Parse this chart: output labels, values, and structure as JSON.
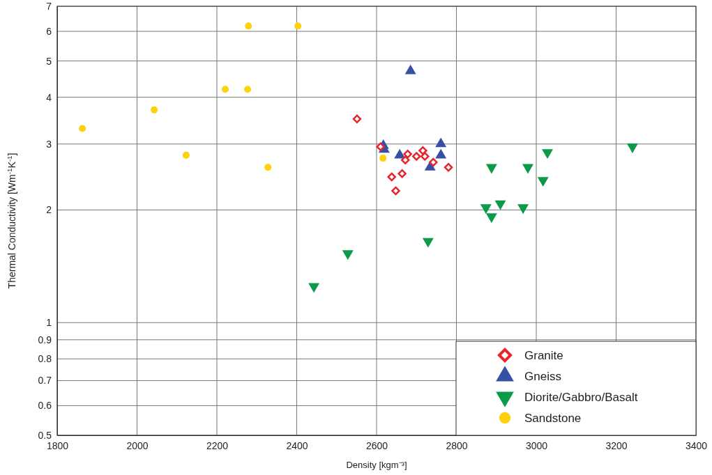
{
  "chart_data": {
    "type": "scatter",
    "xlabel": "Density [kgm⁻³]",
    "ylabel": "Thermal Conductivity [Wm$^{-1}$K$^{-1}$]",
    "log": "y",
    "grid": true,
    "legend": "bottom right",
    "xlim": [
      1800,
      3400
    ],
    "xticks": [
      1800,
      2000,
      2200,
      2400,
      2600,
      2800,
      3000,
      3200,
      3400
    ],
    "ylim": [
      0.5,
      7
    ],
    "yticks": [
      0.5,
      0.6,
      0.7,
      0.8,
      0.9,
      1,
      2,
      3,
      4,
      5,
      6,
      7
    ],
    "series": [
      {
        "name": "Granite",
        "color": "#e8232a",
        "marker": "diamond",
        "x": [
          2551,
          2610,
          2678,
          2672,
          2700,
          2716,
          2721,
          2742,
          2780,
          2638,
          2664,
          2648
        ],
        "values": [
          3.5,
          2.95,
          2.82,
          2.72,
          2.78,
          2.88,
          2.78,
          2.68,
          2.6,
          2.45,
          2.5,
          2.25
        ]
      },
      {
        "name": "Gneiss",
        "color": "#3550a4",
        "marker": "triangle",
        "x": [
          2685,
          2617,
          2619,
          2658,
          2761,
          2761,
          2734
        ],
        "values": [
          4.7,
          2.97,
          2.9,
          2.8,
          3.0,
          2.8,
          2.6
        ]
      },
      {
        "name": "Diorite/Gabbro/Basalt",
        "color": "#0a9a48",
        "marker": "triangle-down",
        "x": [
          2443,
          2528,
          2729,
          2874,
          2888,
          2910,
          2888,
          2967,
          2979,
          3017,
          3028,
          3241
        ],
        "values": [
          1.25,
          1.53,
          1.65,
          2.03,
          1.92,
          2.08,
          2.6,
          2.03,
          2.6,
          2.4,
          2.85,
          2.95
        ]
      },
      {
        "name": "Sandstone",
        "color": "#fdd10c",
        "marker": "circle",
        "x": [
          1863,
          2043,
          2123,
          2221,
          2277,
          2279,
          2403,
          2328,
          2616
        ],
        "values": [
          3.3,
          3.7,
          2.8,
          4.2,
          4.2,
          6.2,
          6.2,
          2.6,
          2.75
        ]
      }
    ]
  }
}
